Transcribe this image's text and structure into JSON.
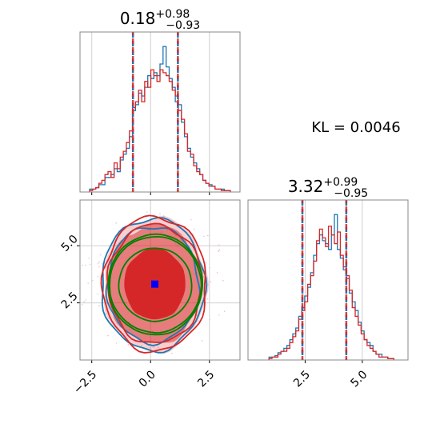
{
  "chart_data": [
    {
      "type": "histogram",
      "param": "x",
      "title": {
        "median": "0.18",
        "plus": "+0.98",
        "minus": "−0.93"
      },
      "xlim": [
        -3.0,
        3.8
      ],
      "x_ticks": [
        -2.5,
        0.0,
        2.5
      ],
      "quantiles": [
        -0.75,
        1.16
      ],
      "bin_width": 0.13,
      "series": [
        {
          "color": "#1f77b4",
          "values": [
            0.02,
            0.02,
            0.03,
            0.05,
            0.05,
            0.1,
            0.1,
            0.12,
            0.16,
            0.14,
            0.22,
            0.26,
            0.3,
            0.38,
            0.56,
            0.6,
            0.68,
            0.66,
            0.72,
            0.8,
            0.78,
            0.82,
            0.8,
            0.88,
            1.0,
            0.86,
            0.78,
            0.72,
            0.62,
            0.6,
            0.48,
            0.38,
            0.3,
            0.24,
            0.2,
            0.16,
            0.12,
            0.08,
            0.06,
            0.05,
            0.04,
            0.02,
            0.02,
            0.02,
            0.01,
            0.01
          ]
        },
        {
          "color": "#d62728",
          "values": [
            0.01,
            0.02,
            0.03,
            0.06,
            0.08,
            0.12,
            0.14,
            0.1,
            0.2,
            0.16,
            0.24,
            0.28,
            0.34,
            0.42,
            0.58,
            0.62,
            0.7,
            0.62,
            0.76,
            0.72,
            0.84,
            0.8,
            0.76,
            0.84,
            0.82,
            0.8,
            0.76,
            0.7,
            0.66,
            0.56,
            0.5,
            0.4,
            0.28,
            0.26,
            0.18,
            0.14,
            0.12,
            0.08,
            0.06,
            0.04,
            0.04,
            0.02,
            0.02,
            0.01,
            0.01,
            0.01
          ]
        }
      ]
    },
    {
      "type": "contour",
      "x_param": "x",
      "y_param": "y",
      "xlim": [
        -3.0,
        3.8
      ],
      "ylim": [
        0.0,
        7.0
      ],
      "x_ticks": [
        -2.5,
        0.0,
        2.5
      ],
      "y_ticks": [
        2.5,
        5.0
      ],
      "marker": {
        "x": 0.18,
        "y": 3.32,
        "color": "#0000ff"
      },
      "fill_color": "#d62728",
      "series": [
        {
          "color": "#1f77b4",
          "center": [
            0.1,
            3.3
          ],
          "levels": [
            [
              1.95,
              2.55
            ],
            [
              2.2,
              2.9
            ]
          ]
        },
        {
          "color": "#d62728",
          "center": [
            0.18,
            3.32
          ],
          "levels": [
            [
              1.25,
              1.5
            ],
            [
              2.0,
              2.6
            ],
            [
              2.2,
              2.95
            ]
          ]
        },
        {
          "color": "#008000",
          "center": [
            0.2,
            3.3
          ],
          "levels": [
            [
              1.55,
              1.6
            ],
            [
              1.95,
              2.1
            ],
            [
              2.0,
              2.2
            ]
          ]
        }
      ]
    },
    {
      "type": "histogram",
      "param": "y",
      "title": {
        "median": "3.32",
        "plus": "+0.99",
        "minus": "−0.95"
      },
      "xlim": [
        0.0,
        7.0
      ],
      "x_ticks": [
        2.5,
        5.0
      ],
      "quantiles": [
        2.38,
        4.3
      ],
      "bin_width": 0.13,
      "series": [
        {
          "color": "#1f77b4",
          "values": [
            0.02,
            0.02,
            0.03,
            0.05,
            0.06,
            0.08,
            0.1,
            0.14,
            0.18,
            0.22,
            0.3,
            0.36,
            0.44,
            0.5,
            0.6,
            0.72,
            0.8,
            0.86,
            0.82,
            0.8,
            0.76,
            0.86,
            1.0,
            0.76,
            0.7,
            0.62,
            0.56,
            0.46,
            0.4,
            0.34,
            0.26,
            0.2,
            0.14,
            0.12,
            0.1,
            0.06,
            0.04,
            0.04,
            0.02,
            0.02,
            0.01,
            0.01
          ]
        },
        {
          "color": "#d62728",
          "values": [
            0.01,
            0.02,
            0.02,
            0.04,
            0.06,
            0.06,
            0.08,
            0.12,
            0.16,
            0.2,
            0.28,
            0.34,
            0.4,
            0.52,
            0.58,
            0.68,
            0.82,
            0.9,
            0.84,
            0.78,
            0.92,
            0.86,
            0.8,
            0.88,
            0.72,
            0.64,
            0.58,
            0.48,
            0.36,
            0.3,
            0.24,
            0.18,
            0.14,
            0.1,
            0.08,
            0.06,
            0.04,
            0.02,
            0.02,
            0.02,
            0.01,
            0.01
          ]
        }
      ]
    }
  ],
  "annotation": {
    "kl_text": "KL = 0.0046"
  }
}
